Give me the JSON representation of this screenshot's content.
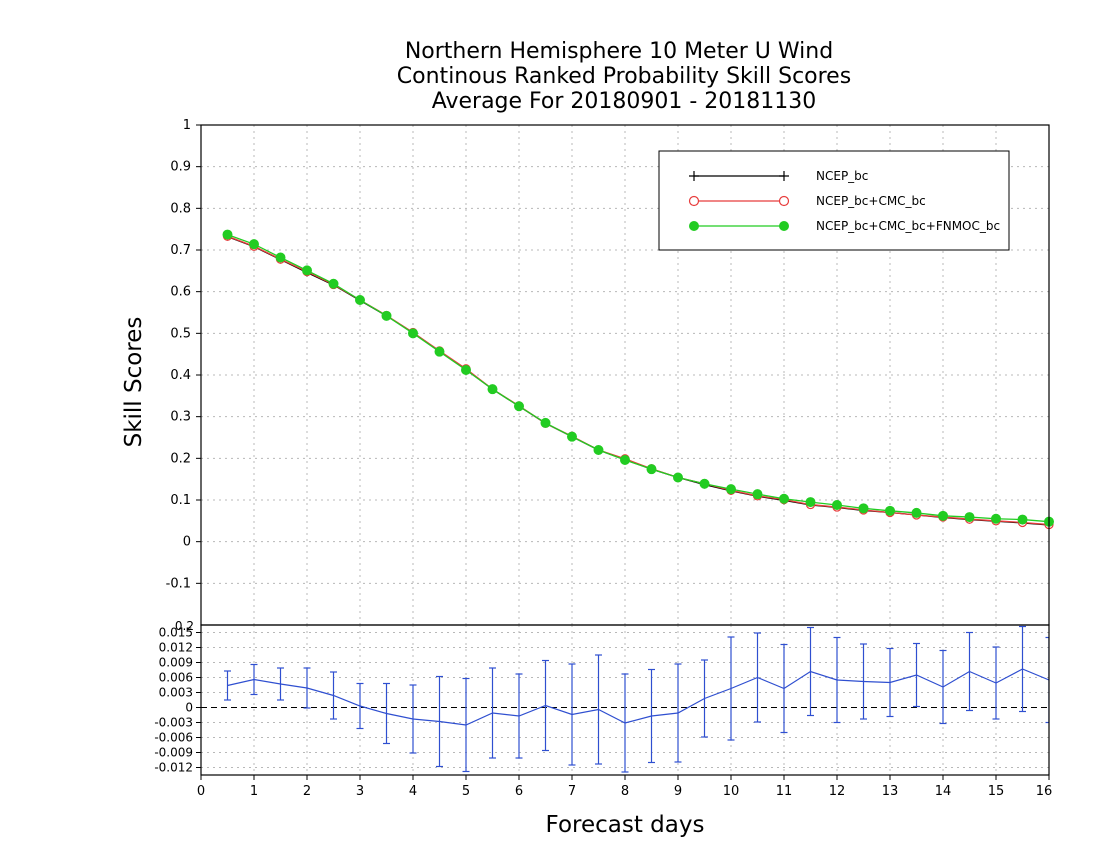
{
  "chart_data": [
    {
      "type": "line",
      "title": [
        "Northern Hemisphere 10 Meter U Wind",
        "Continous Ranked Probability Skill Scores",
        "Average For 20180901 - 20181130"
      ],
      "ylabel": "Skill Scores",
      "ylim": [
        -0.2,
        1
      ],
      "yticks": [
        "-0.1",
        "0",
        "0.1",
        "0.2",
        "0.3",
        "0.4",
        "0.5",
        "0.6",
        "0.7",
        "0.8",
        "0.9",
        "1"
      ],
      "grid": true,
      "legend_position": "top-right",
      "x": [
        0.5,
        1,
        1.5,
        2,
        2.5,
        3,
        3.5,
        4,
        4.5,
        5,
        5.5,
        6,
        6.5,
        7,
        7.5,
        8,
        8.5,
        9,
        9.5,
        10,
        10.5,
        11,
        11.5,
        12,
        12.5,
        13,
        13.5,
        14,
        14.5,
        15,
        15.5,
        16
      ],
      "series": [
        {
          "name": "NCEP_bc",
          "color": "#000000",
          "marker": "plus",
          "values": [
            0.732,
            0.708,
            0.677,
            0.646,
            0.616,
            0.579,
            0.542,
            0.502,
            0.457,
            0.413,
            0.366,
            0.325,
            0.284,
            0.252,
            0.22,
            0.197,
            0.174,
            0.154,
            0.137,
            0.122,
            0.109,
            0.099,
            0.088,
            0.082,
            0.075,
            0.07,
            0.064,
            0.058,
            0.053,
            0.049,
            0.045,
            0.04
          ]
        },
        {
          "name": "NCEP_bc+CMC_bc",
          "color": "#e83c3c",
          "marker": "open-circle",
          "values": [
            0.733,
            0.709,
            0.678,
            0.648,
            0.617,
            0.58,
            0.543,
            0.502,
            0.458,
            0.415,
            0.366,
            0.326,
            0.284,
            0.253,
            0.22,
            0.199,
            0.175,
            0.154,
            0.139,
            0.123,
            0.11,
            0.101,
            0.089,
            0.083,
            0.076,
            0.07,
            0.064,
            0.059,
            0.054,
            0.05,
            0.046,
            0.041
          ]
        },
        {
          "name": "NCEP_bc+CMC_bc+FNMOC_bc",
          "color": "#22cc22",
          "marker": "filled-circle",
          "values": [
            0.737,
            0.714,
            0.682,
            0.651,
            0.619,
            0.58,
            0.542,
            0.5,
            0.456,
            0.412,
            0.366,
            0.325,
            0.285,
            0.252,
            0.22,
            0.196,
            0.174,
            0.154,
            0.139,
            0.126,
            0.114,
            0.103,
            0.095,
            0.088,
            0.08,
            0.074,
            0.069,
            0.062,
            0.059,
            0.055,
            0.053,
            0.048
          ]
        }
      ]
    },
    {
      "type": "line",
      "xlabel": "Forecast days",
      "ylim": [
        -0.0135,
        0.0165
      ],
      "yticks": [
        "-0.012",
        "-0.009",
        "-0.006",
        "-0.003",
        "0",
        "0.003",
        "0.006",
        "0.009",
        "0.012",
        "0.015"
      ],
      "top_tick_label": "0.2",
      "xlim": [
        0,
        16
      ],
      "xticks": [
        "0",
        "1",
        "2",
        "3",
        "4",
        "5",
        "6",
        "7",
        "8",
        "9",
        "10",
        "11",
        "12",
        "13",
        "14",
        "15",
        "16"
      ],
      "grid": true,
      "x": [
        0.5,
        1,
        1.5,
        2,
        2.5,
        3,
        3.5,
        4,
        4.5,
        5,
        5.5,
        6,
        6.5,
        7,
        7.5,
        8,
        8.5,
        9,
        9.5,
        10,
        10.5,
        11,
        11.5,
        12,
        12.5,
        13,
        13.5,
        14,
        14.5,
        15,
        15.5,
        16
      ],
      "series": [
        {
          "color": "#2f4fd0",
          "values": [
            0.0044,
            0.0056,
            0.0047,
            0.0039,
            0.0024,
            0.0003,
            -0.0012,
            -0.0023,
            -0.0028,
            -0.0035,
            -0.0011,
            -0.0017,
            0.0004,
            -0.0014,
            -0.0004,
            -0.0031,
            -0.0017,
            -0.0011,
            0.0018,
            0.0038,
            0.006,
            0.0038,
            0.0072,
            0.0055,
            0.0052,
            0.005,
            0.0065,
            0.0041,
            0.0072,
            0.0049,
            0.0077,
            0.0055
          ],
          "error": [
            0.0029,
            0.003,
            0.0032,
            0.004,
            0.0047,
            0.0045,
            0.006,
            0.0068,
            0.009,
            0.0093,
            0.009,
            0.0084,
            0.009,
            0.0101,
            0.0109,
            0.0098,
            0.0093,
            0.0098,
            0.0077,
            0.0103,
            0.0089,
            0.0088,
            0.0088,
            0.0085,
            0.0075,
            0.0068,
            0.0063,
            0.0073,
            0.0078,
            0.0072,
            0.0085,
            0.0085
          ]
        }
      ]
    }
  ]
}
